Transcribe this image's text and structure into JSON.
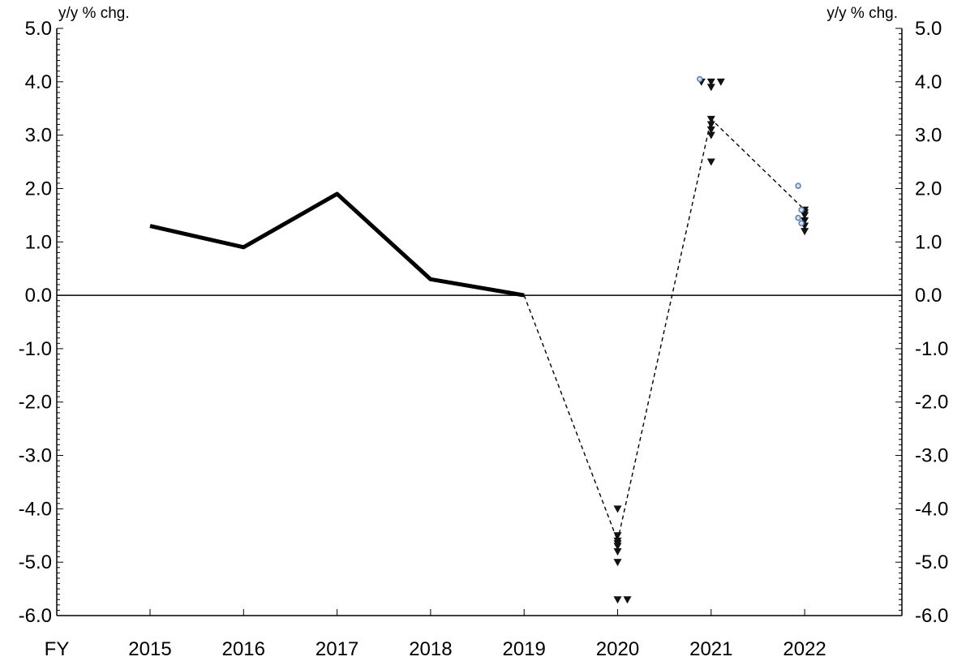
{
  "chart_data": {
    "type": "line",
    "ylabel_left": "y/y % chg.",
    "ylabel_right": "y/y % chg.",
    "x_axis_prefix": "FY",
    "categories": [
      "2015",
      "2016",
      "2017",
      "2018",
      "2019",
      "2020",
      "2021",
      "2022"
    ],
    "ylim": [
      -6.0,
      5.0
    ],
    "yticks": [
      "5.0",
      "4.0",
      "3.0",
      "2.0",
      "1.0",
      "0.0",
      "-1.0",
      "-2.0",
      "-3.0",
      "-4.0",
      "-5.0",
      "-6.0"
    ],
    "grid": false,
    "series": [
      {
        "style": "solid-line",
        "color": "#000000",
        "x": [
          "2015",
          "2016",
          "2017",
          "2018",
          "2019"
        ],
        "y": [
          1.3,
          0.9,
          1.9,
          0.3,
          0.0
        ]
      },
      {
        "style": "dashed-line",
        "color": "#000000",
        "x": [
          "2019",
          "2020",
          "2021",
          "2022"
        ],
        "y": [
          0.0,
          -4.6,
          3.3,
          1.6
        ]
      },
      {
        "style": "triangle-markers",
        "color": "#111111",
        "points": [
          {
            "x": "2020",
            "y": -4.0
          },
          {
            "x": "2020",
            "y": -4.5
          },
          {
            "x": "2020",
            "y": -4.6
          },
          {
            "x": "2020",
            "y": -4.65
          },
          {
            "x": "2020",
            "y": -4.7
          },
          {
            "x": "2020",
            "y": -4.8
          },
          {
            "x": "2020",
            "y": -5.0
          },
          {
            "x": "2020",
            "y": -5.7
          },
          {
            "x": "2020",
            "y": -5.7
          },
          {
            "x": "2021",
            "y": 4.0
          },
          {
            "x": "2021",
            "y": 4.0
          },
          {
            "x": "2021",
            "y": 4.0
          },
          {
            "x": "2021",
            "y": 3.9
          },
          {
            "x": "2021",
            "y": 3.3
          },
          {
            "x": "2021",
            "y": 3.2
          },
          {
            "x": "2021",
            "y": 3.1
          },
          {
            "x": "2021",
            "y": 3.0
          },
          {
            "x": "2021",
            "y": 2.5
          },
          {
            "x": "2022",
            "y": 1.6
          },
          {
            "x": "2022",
            "y": 1.55
          },
          {
            "x": "2022",
            "y": 1.5
          },
          {
            "x": "2022",
            "y": 1.4
          },
          {
            "x": "2022",
            "y": 1.3
          },
          {
            "x": "2022",
            "y": 1.2
          }
        ]
      },
      {
        "style": "circle-markers",
        "color": "#5b7fb5",
        "points": [
          {
            "x": "2021",
            "y": 4.05
          },
          {
            "x": "2022",
            "y": 2.05
          },
          {
            "x": "2022",
            "y": 1.6
          },
          {
            "x": "2022",
            "y": 1.45
          },
          {
            "x": "2022",
            "y": 1.35
          }
        ]
      }
    ]
  }
}
